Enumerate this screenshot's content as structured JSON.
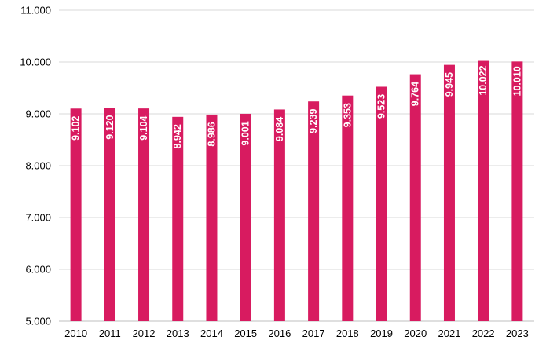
{
  "chart_data": {
    "type": "bar",
    "categories": [
      "2010",
      "2011",
      "2012",
      "2013",
      "2014",
      "2015",
      "2016",
      "2017",
      "2018",
      "2019",
      "2020",
      "2021",
      "2022",
      "2023"
    ],
    "values": [
      9102,
      9120,
      9104,
      8942,
      8986,
      9001,
      9084,
      9239,
      9353,
      9523,
      9764,
      9945,
      10022,
      10010
    ],
    "data_labels": [
      "9.102",
      "9.120",
      "9.104",
      "8.942",
      "8.986",
      "9.001",
      "9.084",
      "9.239",
      "9.353",
      "9.523",
      "9.764",
      "9.945",
      "10.022",
      "10.010"
    ],
    "yticks": [
      5000,
      6000,
      7000,
      8000,
      9000,
      10000,
      11000
    ],
    "ytick_labels": [
      "5.000",
      "6.000",
      "7.000",
      "8.000",
      "9.000",
      "10.000",
      "11.000"
    ],
    "ylim": [
      5000,
      11000
    ],
    "title": "",
    "xlabel": "",
    "ylabel": "",
    "grid": true,
    "legend": "none",
    "bar_color": "#d81b60"
  }
}
